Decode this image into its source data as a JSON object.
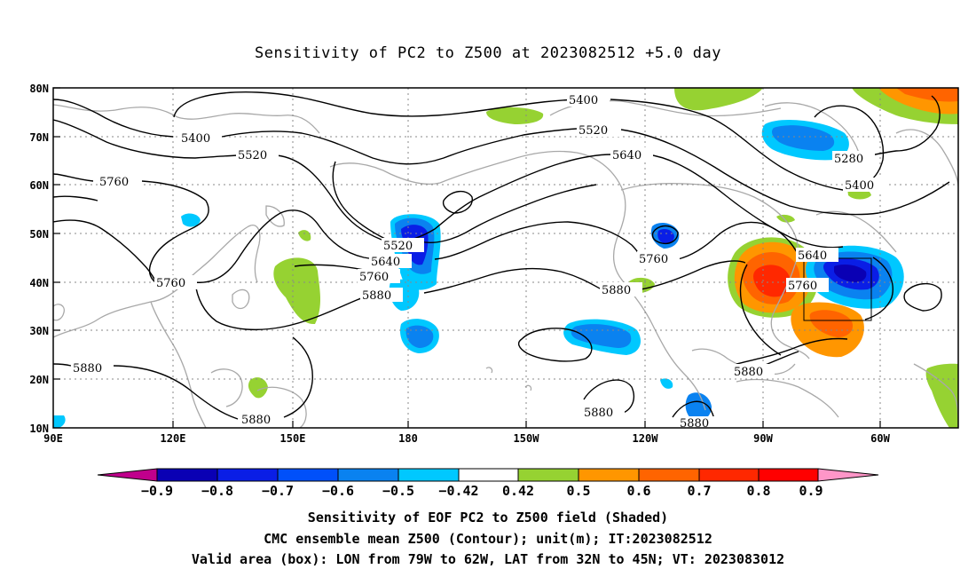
{
  "title": "Sensitivity of PC2 to Z500 at 2023082512 +5.0 day",
  "lat_labels": [
    "80N",
    "70N",
    "60N",
    "50N",
    "40N",
    "30N",
    "20N",
    "10N"
  ],
  "lon_labels": [
    "90E",
    "120E",
    "150E",
    "180",
    "150W",
    "120W",
    "90W",
    "60W"
  ],
  "contour_labels": [
    {
      "text": "5400"
    },
    {
      "text": "5400"
    },
    {
      "text": "5520"
    },
    {
      "text": "5520"
    },
    {
      "text": "5640"
    },
    {
      "text": "5760"
    },
    {
      "text": "5760"
    },
    {
      "text": "5280"
    },
    {
      "text": "5400"
    },
    {
      "text": "5520"
    },
    {
      "text": "5640"
    },
    {
      "text": "5760"
    },
    {
      "text": "5880"
    },
    {
      "text": "5760"
    },
    {
      "text": "5880"
    },
    {
      "text": "5640"
    },
    {
      "text": "5760"
    },
    {
      "text": "5880"
    },
    {
      "text": "5880"
    },
    {
      "text": "5880"
    },
    {
      "text": "5880"
    },
    {
      "text": "5880"
    }
  ],
  "colorbar": {
    "colors": [
      "#c0008c",
      "#0a00b4",
      "#0a1ee6",
      "#0050fa",
      "#0a82f0",
      "#00c8ff",
      "#ffffff",
      "#96d232",
      "#ff9600",
      "#ff6400",
      "#ff2800",
      "#ff0000",
      "#ff96c8"
    ],
    "labels": [
      "−0.9",
      "−0.8",
      "−0.7",
      "−0.6",
      "−0.5",
      "−0.42",
      "0.42",
      "0.5",
      "0.6",
      "0.7",
      "0.8",
      "0.9"
    ]
  },
  "footer": {
    "line1": "Sensitivity of EOF PC2 to Z500 field (Shaded)",
    "line2": "CMC ensemble mean Z500 (Contour); unit(m); IT:2023082512",
    "line3": "Valid area (box): LON from 79W to 62W, LAT from 32N to 45N; VT: 2023083012"
  }
}
